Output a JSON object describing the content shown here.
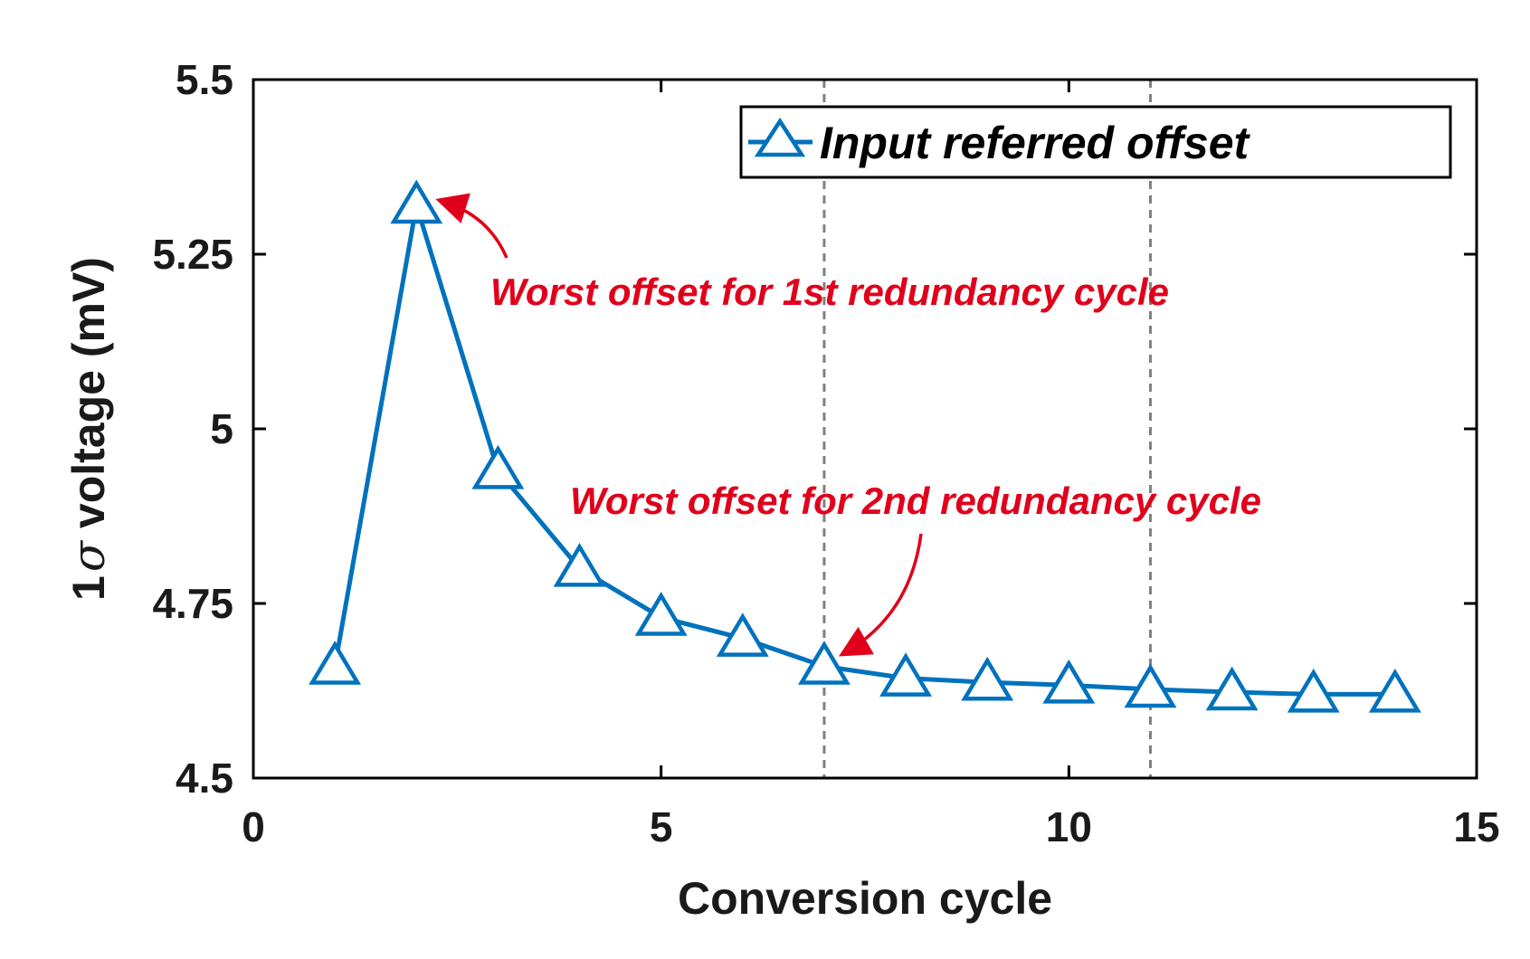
{
  "chart_data": {
    "type": "line",
    "title": "",
    "xlabel": "Conversion cycle",
    "ylabel_prefix": "1",
    "ylabel_sigma": "σ",
    "ylabel_suffix": " voltage (mV)",
    "xlim": [
      0,
      15
    ],
    "ylim": [
      4.5,
      5.5
    ],
    "xticks": [
      0,
      5,
      10,
      15
    ],
    "xtick_labels": [
      "0",
      "5",
      "10",
      "15"
    ],
    "yticks": [
      4.5,
      4.75,
      5,
      5.25,
      5.5
    ],
    "ytick_labels": [
      "4.5",
      "4.75",
      "5",
      "5.25",
      "5.5"
    ],
    "grid": false,
    "legend_position": "top-right",
    "vertical_reference_lines": [
      7,
      11
    ],
    "series": [
      {
        "name": "Input referred offset",
        "color": "#0072bd",
        "marker": "triangle",
        "x": [
          1,
          2,
          3,
          4,
          5,
          6,
          7,
          8,
          9,
          10,
          11,
          12,
          13,
          14
        ],
        "y": [
          4.66,
          5.32,
          4.94,
          4.8,
          4.73,
          4.7,
          4.66,
          4.643,
          4.637,
          4.633,
          4.627,
          4.623,
          4.62,
          4.62
        ]
      }
    ],
    "annotations": [
      {
        "text": "Worst offset for 1st redundancy cycle",
        "points_to": {
          "x": 2,
          "y": 5.32
        }
      },
      {
        "text": "Worst offset for 2nd redundancy cycle",
        "points_to": {
          "x": 7,
          "y": 4.66
        }
      }
    ],
    "annotation_color": "#e0001b"
  }
}
